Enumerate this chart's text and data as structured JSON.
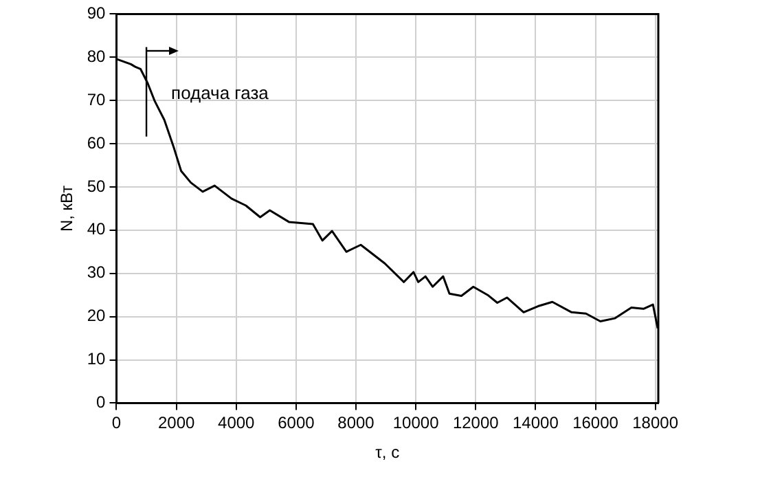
{
  "chart_data": {
    "type": "line",
    "xlabel": "τ, с",
    "ylabel": "N, кВт",
    "xlim": [
      0,
      18100
    ],
    "ylim": [
      0,
      90
    ],
    "xticks": [
      0,
      2000,
      4000,
      6000,
      8000,
      10000,
      12000,
      14000,
      16000,
      18000
    ],
    "yticks": [
      0,
      10,
      20,
      30,
      40,
      50,
      60,
      70,
      80,
      90
    ],
    "grid": true,
    "legend": false,
    "marker": "none",
    "line_style": "solid",
    "ref_lines": [
      {
        "axis": "x",
        "value": 1000,
        "label": "подача газа"
      }
    ],
    "series": [
      {
        "color": "#000000",
        "x": [
          0,
          480,
          624,
          802,
          1042,
          1282,
          1599,
          1920,
          2160,
          2482,
          2880,
          3279,
          3841,
          4321,
          4801,
          5122,
          5761,
          6563,
          6880,
          7201,
          7681,
          8161,
          8963,
          9601,
          9923,
          10082,
          10322,
          10562,
          10912,
          11123,
          11522,
          11920,
          12400,
          12722,
          13044,
          13601,
          14081,
          14561,
          15204,
          15684,
          16164,
          16644,
          17201,
          17604,
          17921,
          18080
        ],
        "values": [
          79.6,
          78.4,
          77.8,
          77.3,
          74,
          69.8,
          65.5,
          59,
          53.7,
          51,
          48.9,
          50.3,
          47.3,
          45.7,
          43,
          44.6,
          41.9,
          41.4,
          37.6,
          39.8,
          35,
          36.6,
          32.3,
          28,
          30.3,
          28,
          29.3,
          26.9,
          29.3,
          25.3,
          24.8,
          26.9,
          25,
          23.2,
          24.4,
          21,
          22.4,
          23.4,
          21,
          20.7,
          18.9,
          19.6,
          22.1,
          21.8,
          22.8,
          17.3
        ]
      }
    ]
  }
}
